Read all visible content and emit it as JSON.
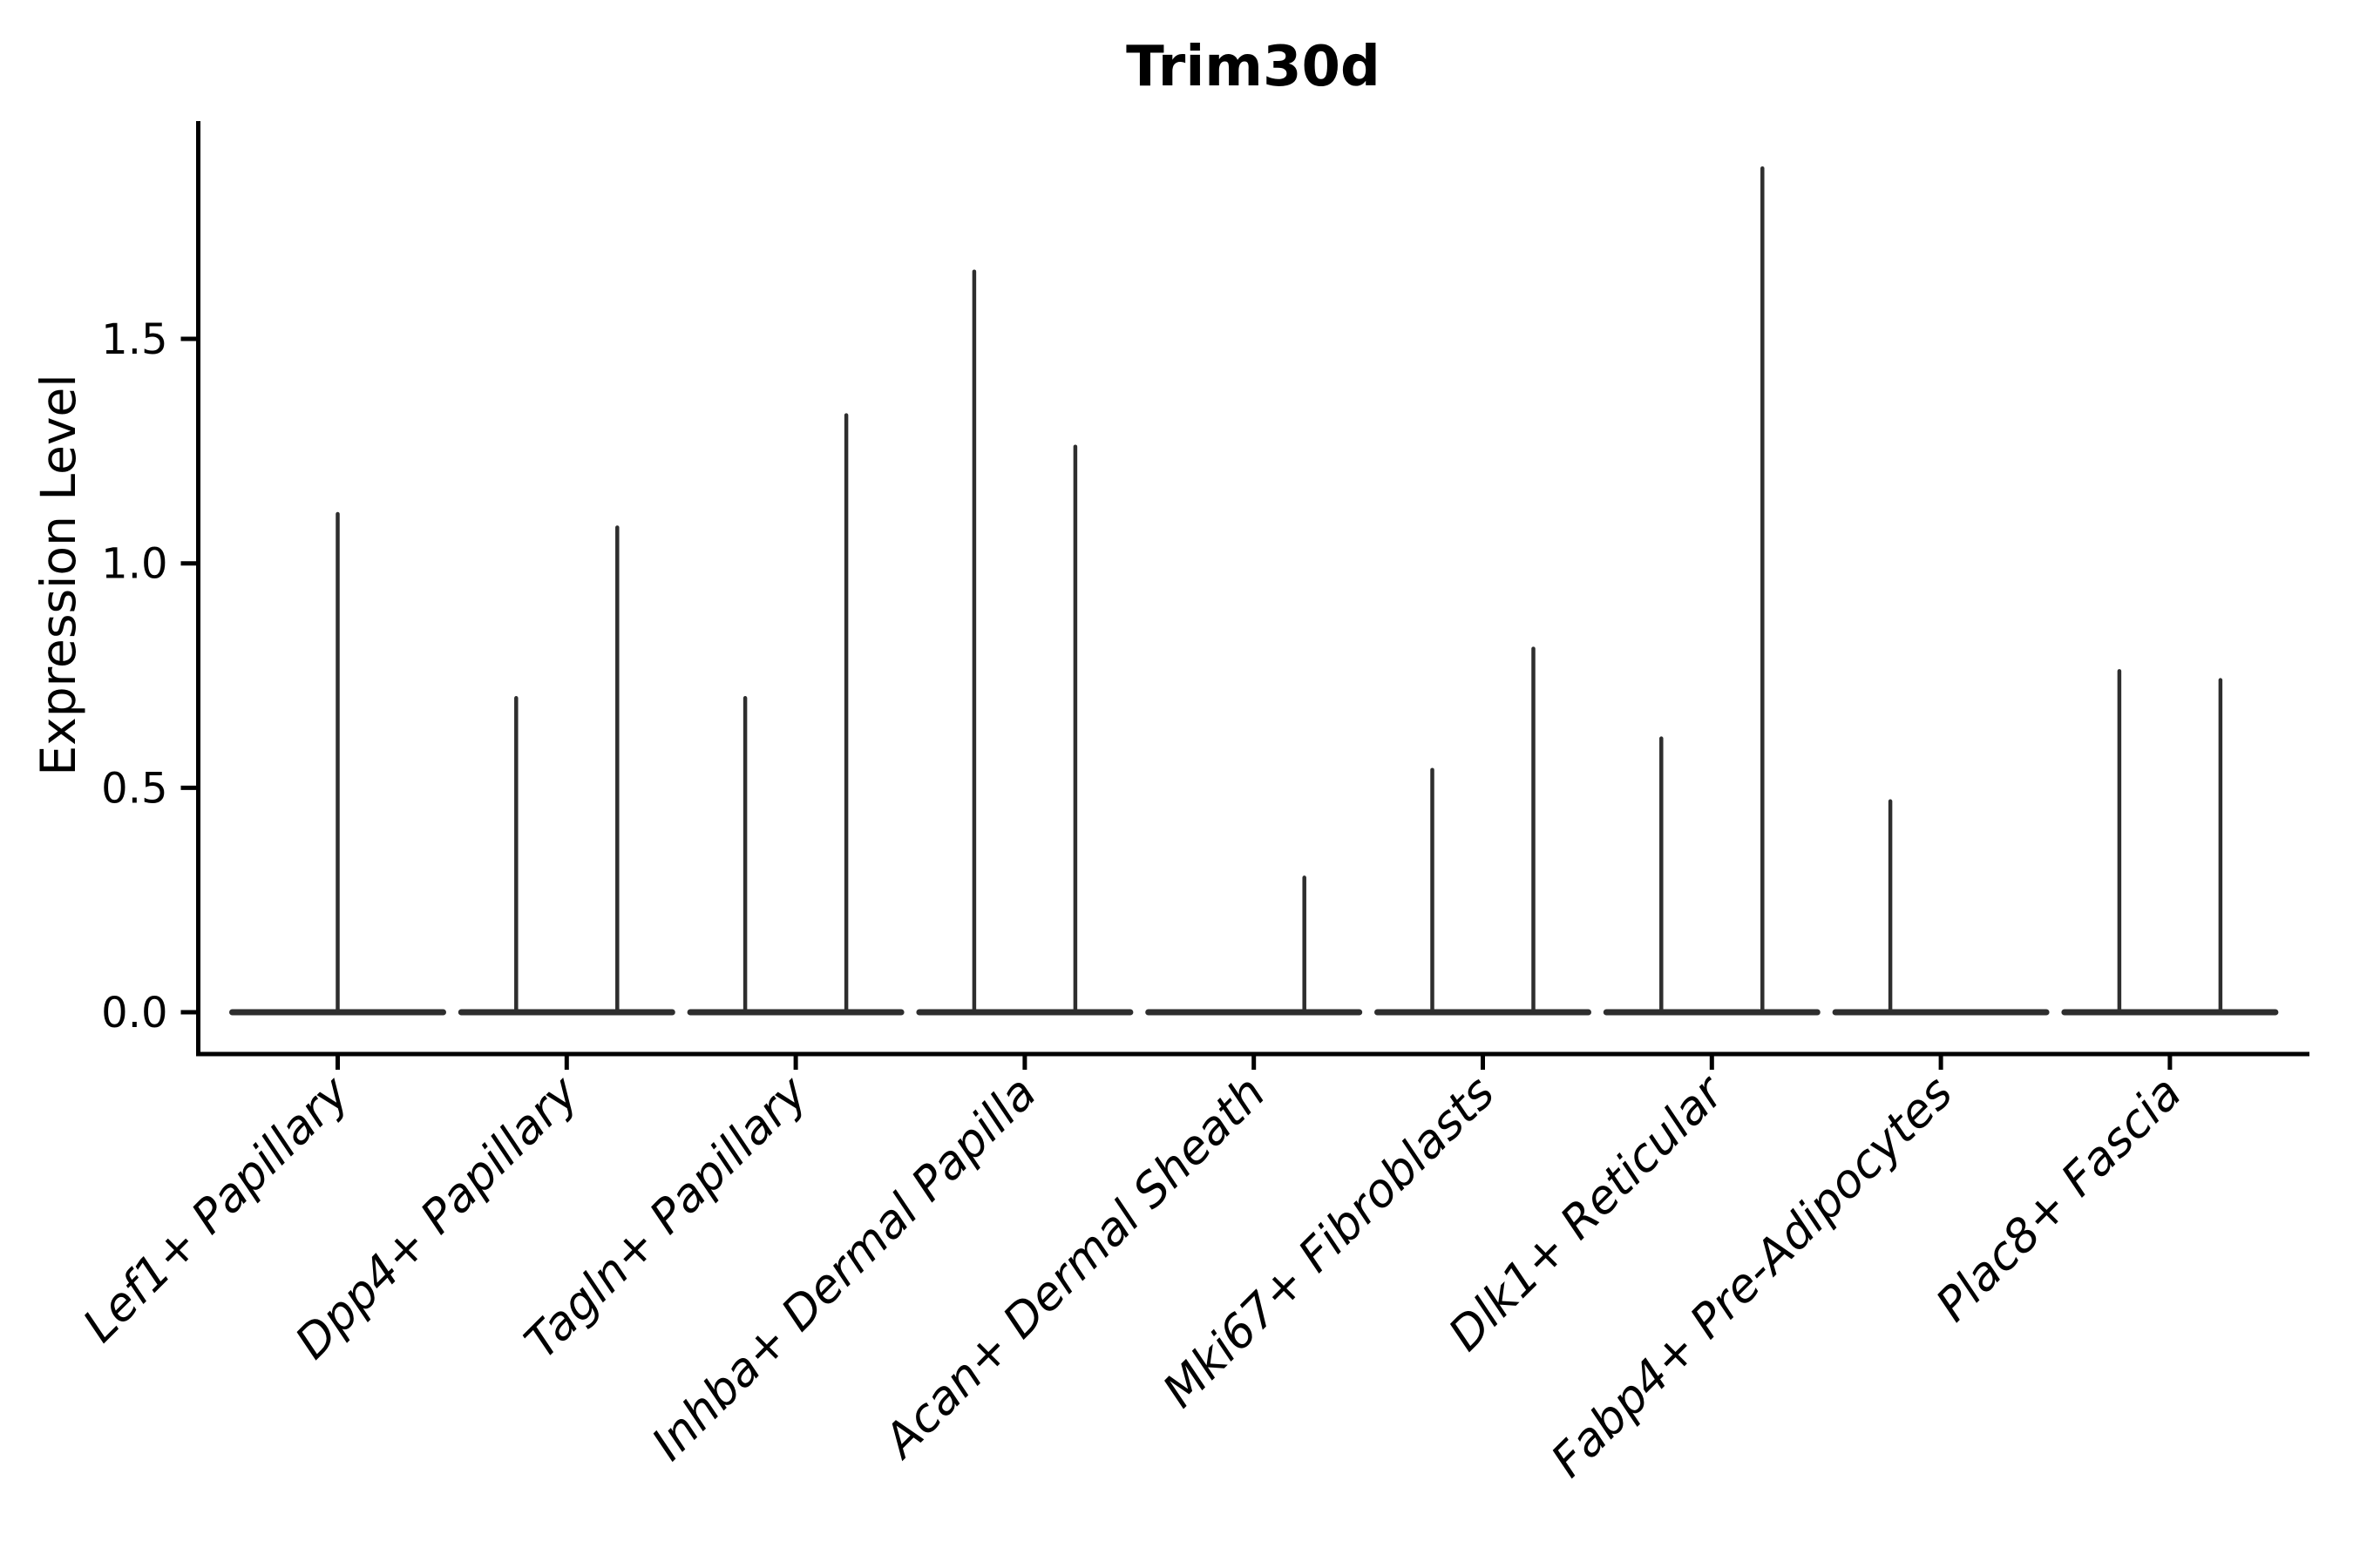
{
  "chart_data": {
    "type": "violin",
    "title": "Trim30d",
    "ylabel": "Expression Level",
    "xlabel": "",
    "yticks": [
      {
        "label": "0.0",
        "value": 0.0
      },
      {
        "label": "0.5",
        "value": 0.5
      },
      {
        "label": "1.0",
        "value": 1.0
      },
      {
        "label": "1.5",
        "value": 1.5
      }
    ],
    "ylim": [
      -0.09,
      1.99
    ],
    "grid": false,
    "legend_position": "none",
    "categories": [
      "Lef1+ Papillary",
      "Dpp4+ Papillary",
      "Tagln+ Papillary",
      "Inhba+ Dermal Papilla",
      "Acan+ Dermal Sheath",
      "Mki67+ Fibroblasts",
      "Dlk1+ Reticular",
      "Fabp4+ Pre-Adipocytes",
      "Plac8+ Fascia"
    ],
    "violins": [
      {
        "category": "Lef1+ Papillary",
        "baseline_value": 0.0,
        "spikes": [
          {
            "pos": 0,
            "max_value": 1.11
          }
        ]
      },
      {
        "category": "Dpp4+ Papillary",
        "baseline_value": 0.0,
        "spikes": [
          {
            "pos": -1,
            "max_value": 0.7
          },
          {
            "pos": 1,
            "max_value": 1.08
          }
        ]
      },
      {
        "category": "Tagln+ Papillary",
        "baseline_value": 0.0,
        "spikes": [
          {
            "pos": -1,
            "max_value": 0.7
          },
          {
            "pos": 1,
            "max_value": 1.33
          }
        ]
      },
      {
        "category": "Inhba+ Dermal Papilla",
        "baseline_value": 0.0,
        "spikes": [
          {
            "pos": -1,
            "max_value": 1.65
          },
          {
            "pos": 1,
            "max_value": 1.26
          }
        ]
      },
      {
        "category": "Acan+ Dermal Sheath",
        "baseline_value": 0.0,
        "spikes": [
          {
            "pos": 1,
            "max_value": 0.3
          }
        ]
      },
      {
        "category": "Mki67+ Fibroblasts",
        "baseline_value": 0.0,
        "spikes": [
          {
            "pos": -1,
            "max_value": 0.54
          },
          {
            "pos": 1,
            "max_value": 0.81
          }
        ]
      },
      {
        "category": "Dlk1+ Reticular",
        "baseline_value": 0.0,
        "spikes": [
          {
            "pos": -1,
            "max_value": 0.61
          },
          {
            "pos": 1,
            "max_value": 1.88
          }
        ]
      },
      {
        "category": "Fabp4+ Pre-Adipocytes",
        "baseline_value": 0.0,
        "spikes": [
          {
            "pos": -1,
            "max_value": 0.47
          }
        ]
      },
      {
        "category": "Plac8+ Fascia",
        "baseline_value": 0.0,
        "spikes": [
          {
            "pos": -1,
            "max_value": 0.76
          },
          {
            "pos": 1,
            "max_value": 0.74
          }
        ]
      }
    ],
    "colors": {
      "violin": "#2e2e2e",
      "axis": "#000000",
      "text": "#000000",
      "background": "#ffffff"
    }
  }
}
